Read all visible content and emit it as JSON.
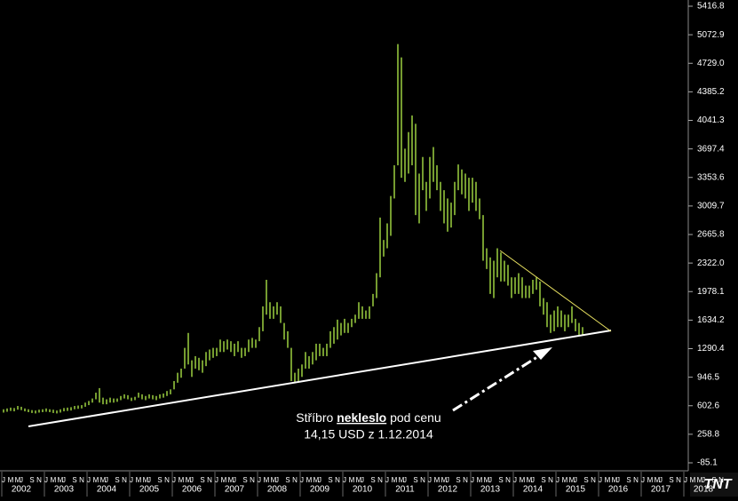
{
  "chart_data": {
    "type": "range_bar",
    "color": "#b4f04a",
    "ylim": [
      -85.1,
      5416.8
    ],
    "yticks": [
      {
        "value": -85.1,
        "label": "-85.1"
      },
      258.8,
      602.6,
      946.5,
      1290.4,
      1634.2,
      1978.1,
      {
        "value": 2322,
        "label": "2322.0"
      },
      2665.8,
      3009.7,
      3353.6,
      3697.4,
      4041.3,
      4385.2,
      {
        "value": 4729,
        "label": "4729.0"
      },
      5072.9,
      5416.8
    ],
    "years": [
      2002,
      2003,
      2004,
      2005,
      2006,
      2007,
      2008,
      2009,
      2010,
      2011,
      2012,
      2013,
      2014,
      2015,
      2016,
      2017,
      2018
    ],
    "month_letters": [
      "J",
      "F",
      "M",
      "A",
      "M",
      "J",
      "J",
      "A",
      "S",
      "O",
      "N",
      "D"
    ],
    "categories": [
      "2002-01",
      "2002-02",
      "2002-03",
      "2002-04",
      "2002-05",
      "2002-06",
      "2002-07",
      "2002-08",
      "2002-09",
      "2002-10",
      "2002-11",
      "2002-12",
      "2003-01",
      "2003-02",
      "2003-03",
      "2003-04",
      "2003-05",
      "2003-06",
      "2003-07",
      "2003-08",
      "2003-09",
      "2003-10",
      "2003-11",
      "2003-12",
      "2004-01",
      "2004-02",
      "2004-03",
      "2004-04",
      "2004-05",
      "2004-06",
      "2004-07",
      "2004-08",
      "2004-09",
      "2004-10",
      "2004-11",
      "2004-12",
      "2005-01",
      "2005-02",
      "2005-03",
      "2005-04",
      "2005-05",
      "2005-06",
      "2005-07",
      "2005-08",
      "2005-09",
      "2005-10",
      "2005-11",
      "2005-12",
      "2006-01",
      "2006-02",
      "2006-03",
      "2006-04",
      "2006-05",
      "2006-06",
      "2006-07",
      "2006-08",
      "2006-09",
      "2006-10",
      "2006-11",
      "2006-12",
      "2007-01",
      "2007-02",
      "2007-03",
      "2007-04",
      "2007-05",
      "2007-06",
      "2007-07",
      "2007-08",
      "2007-09",
      "2007-10",
      "2007-11",
      "2007-12",
      "2008-01",
      "2008-02",
      "2008-03",
      "2008-04",
      "2008-05",
      "2008-06",
      "2008-07",
      "2008-08",
      "2008-09",
      "2008-10",
      "2008-11",
      "2008-12",
      "2009-01",
      "2009-02",
      "2009-03",
      "2009-04",
      "2009-05",
      "2009-06",
      "2009-07",
      "2009-08",
      "2009-09",
      "2009-10",
      "2009-11",
      "2009-12",
      "2010-01",
      "2010-02",
      "2010-03",
      "2010-04",
      "2010-05",
      "2010-06",
      "2010-07",
      "2010-08",
      "2010-09",
      "2010-10",
      "2010-11",
      "2010-12",
      "2011-01",
      "2011-02",
      "2011-03",
      "2011-04",
      "2011-05",
      "2011-06",
      "2011-07",
      "2011-08",
      "2011-09",
      "2011-10",
      "2011-11",
      "2011-12",
      "2012-01",
      "2012-02",
      "2012-03",
      "2012-04",
      "2012-05",
      "2012-06",
      "2012-07",
      "2012-08",
      "2012-09",
      "2012-10",
      "2012-11",
      "2012-12",
      "2013-01",
      "2013-02",
      "2013-03",
      "2013-04",
      "2013-05",
      "2013-06",
      "2013-07",
      "2013-08",
      "2013-09",
      "2013-10",
      "2013-11",
      "2013-12",
      "2014-01",
      "2014-02",
      "2014-03",
      "2014-04",
      "2014-05",
      "2014-06",
      "2014-07",
      "2014-08",
      "2014-09",
      "2014-10",
      "2014-11",
      "2014-12",
      "2015-01",
      "2015-02",
      "2015-03",
      "2015-04",
      "2015-05",
      "2015-06",
      "2015-07",
      "2015-08"
    ],
    "high": [
      560,
      570,
      580,
      575,
      600,
      590,
      570,
      560,
      550,
      545,
      555,
      560,
      570,
      560,
      555,
      545,
      560,
      575,
      580,
      585,
      600,
      605,
      610,
      640,
      660,
      690,
      760,
      815,
      700,
      680,
      700,
      690,
      690,
      720,
      740,
      730,
      700,
      710,
      760,
      740,
      720,
      740,
      730,
      720,
      740,
      750,
      780,
      800,
      900,
      1000,
      1050,
      1300,
      1480,
      1150,
      1200,
      1180,
      1150,
      1250,
      1280,
      1300,
      1300,
      1400,
      1380,
      1400,
      1380,
      1350,
      1380,
      1300,
      1300,
      1400,
      1420,
      1400,
      1550,
      1800,
      2120,
      1850,
      1800,
      1850,
      1800,
      1600,
      1500,
      1300,
      1000,
      1050,
      1100,
      1250,
      1200,
      1250,
      1350,
      1350,
      1300,
      1350,
      1500,
      1550,
      1640,
      1600,
      1650,
      1600,
      1650,
      1700,
      1850,
      1800,
      1750,
      1800,
      1950,
      2200,
      2870,
      2600,
      2800,
      3130,
      3500,
      4960,
      4800,
      3700,
      3900,
      4100,
      4000,
      3400,
      3600,
      3300,
      3600,
      3720,
      3500,
      3300,
      3200,
      3100,
      3050,
      3300,
      3510,
      3450,
      3400,
      3350,
      3350,
      3300,
      3100,
      2900,
      2500,
      2390,
      2350,
      2500,
      2450,
      2350,
      2300,
      2150,
      2150,
      2200,
      2150,
      2050,
      2050,
      2120,
      2150,
      2100,
      1900,
      1850,
      1700,
      1750,
      1800,
      1750,
      1700,
      1700,
      1800,
      1650,
      1600,
      1550
    ],
    "low": [
      520,
      530,
      540,
      535,
      555,
      550,
      535,
      525,
      515,
      510,
      520,
      525,
      530,
      525,
      515,
      510,
      520,
      535,
      540,
      545,
      560,
      565,
      570,
      590,
      610,
      640,
      680,
      640,
      620,
      620,
      640,
      640,
      650,
      670,
      690,
      680,
      660,
      670,
      700,
      680,
      670,
      690,
      680,
      670,
      690,
      700,
      720,
      740,
      800,
      880,
      940,
      1050,
      1100,
      950,
      1050,
      1030,
      1000,
      1080,
      1150,
      1180,
      1200,
      1250,
      1250,
      1280,
      1250,
      1200,
      1250,
      1180,
      1200,
      1250,
      1300,
      1300,
      1380,
      1500,
      1700,
      1650,
      1650,
      1700,
      1600,
      1400,
      1300,
      900,
      880,
      900,
      950,
      1050,
      1050,
      1100,
      1150,
      1200,
      1200,
      1200,
      1300,
      1350,
      1400,
      1450,
      1480,
      1480,
      1550,
      1600,
      1650,
      1650,
      1650,
      1650,
      1800,
      1900,
      2150,
      2400,
      2500,
      2650,
      3100,
      3500,
      3350,
      3300,
      3400,
      3500,
      2900,
      2800,
      3200,
      2950,
      3100,
      3300,
      3200,
      2950,
      2800,
      2700,
      2750,
      2900,
      3200,
      3150,
      3100,
      2950,
      3050,
      2950,
      2850,
      2350,
      2250,
      1950,
      1900,
      2150,
      2100,
      2100,
      2050,
      1900,
      1950,
      1950,
      1900,
      1900,
      1900,
      1950,
      2000,
      1800,
      1700,
      1550,
      1480,
      1500,
      1550,
      1550,
      1500,
      1550,
      1600,
      1500,
      1450,
      1450
    ],
    "annotation": {
      "before": "Stříbro ",
      "bold": "nekleslo",
      "after": " pod cenu",
      "line2": "14,15 USD z 1.12.2014"
    },
    "logo": "TNT"
  }
}
